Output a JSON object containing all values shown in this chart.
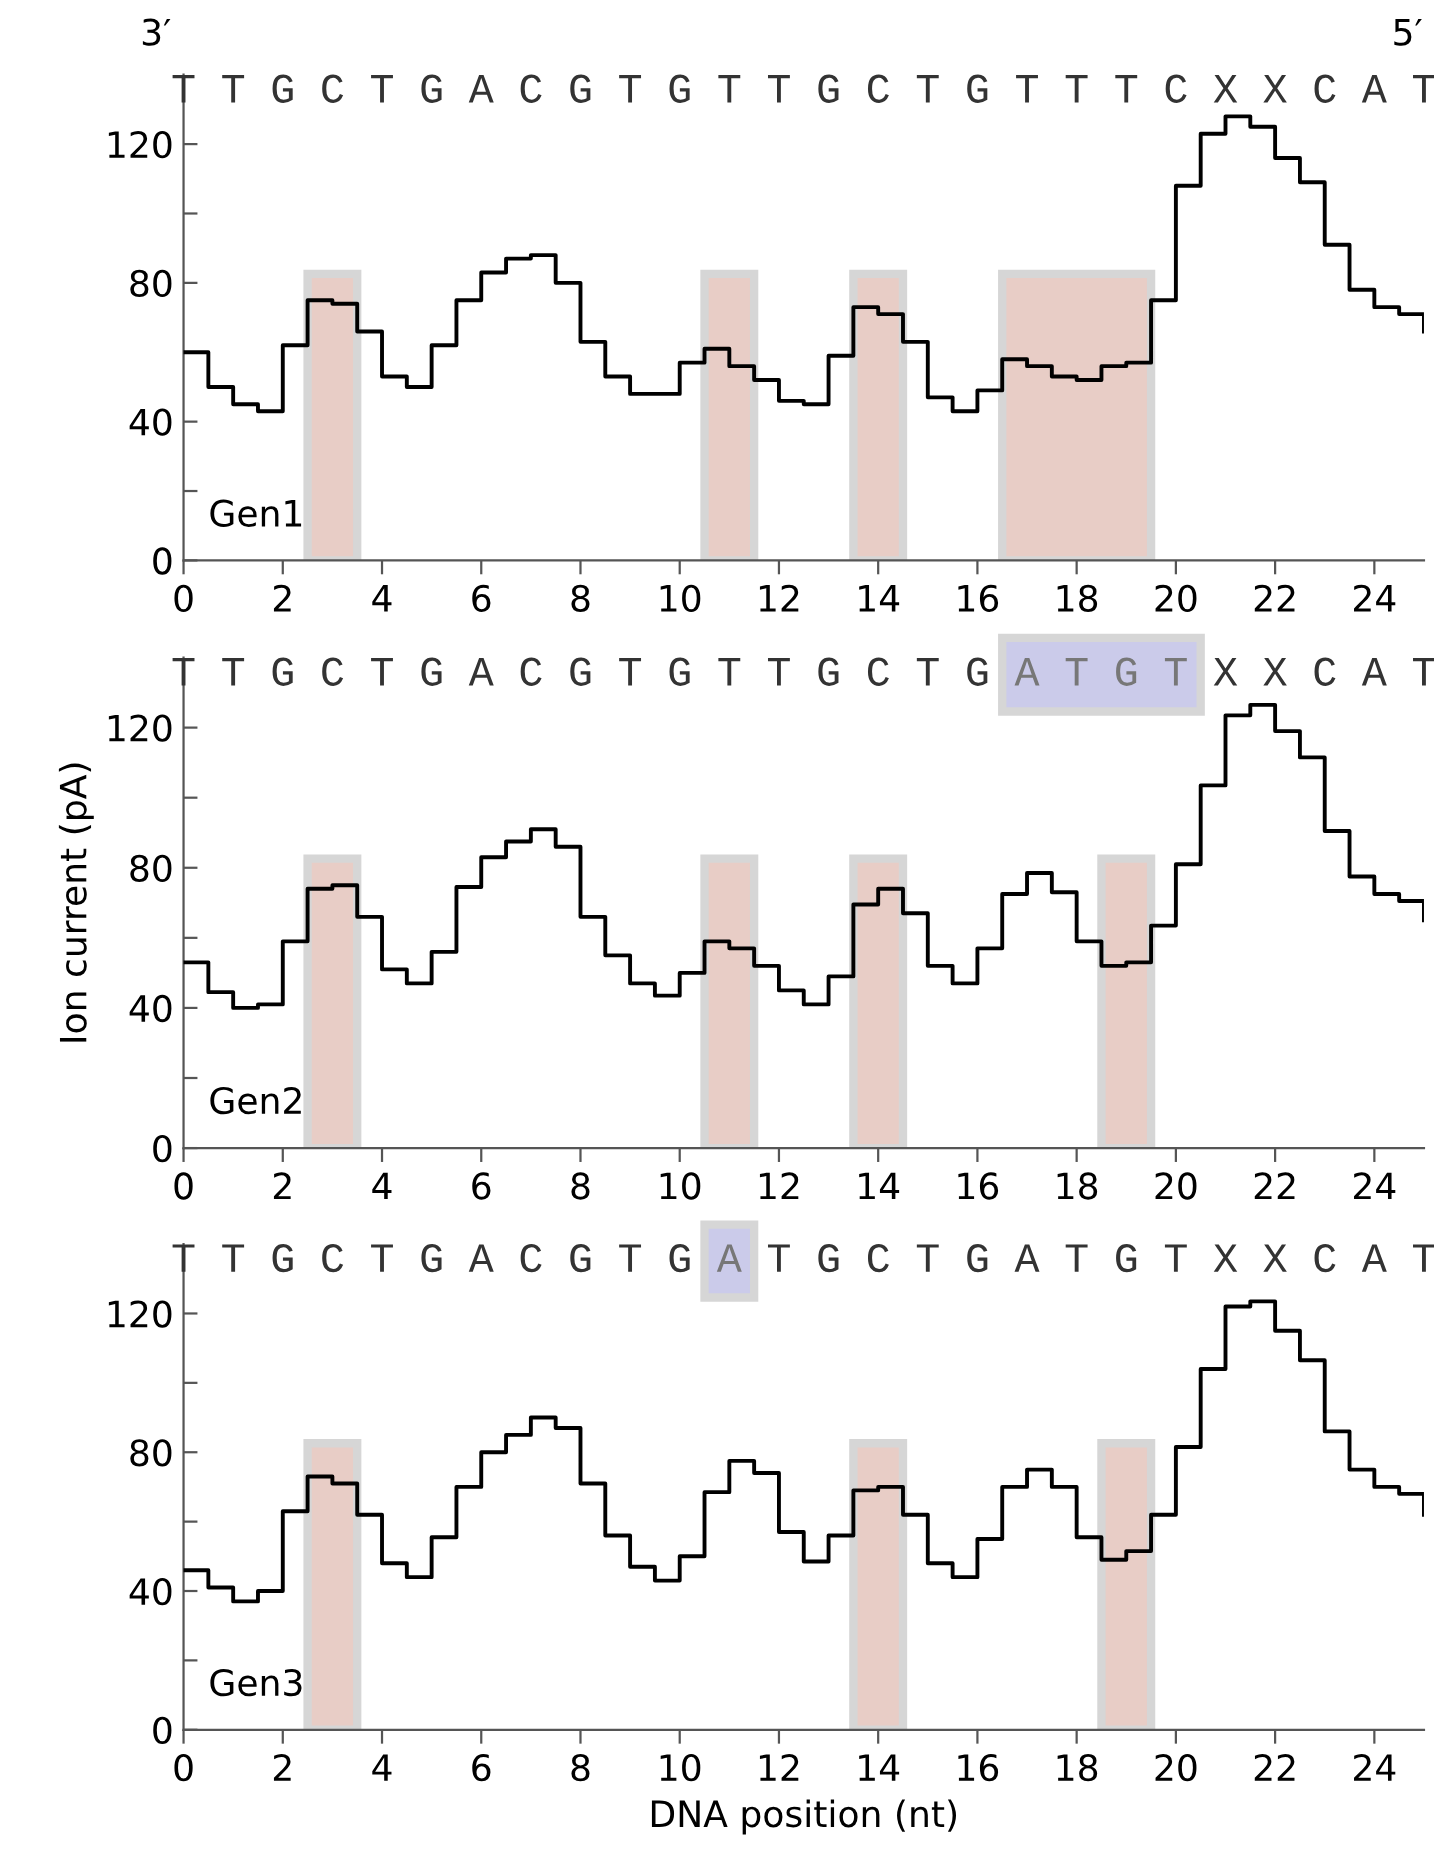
{
  "chart_data": [
    {
      "type": "step",
      "annotations": [
        "Gen1",
        "TTGCTGACGTGTTGCTGTTTCXXCAT",
        "3′",
        "5′"
      ],
      "x": [
        0,
        0.5,
        1,
        1.5,
        2,
        2.5,
        3,
        3.5,
        4,
        4.5,
        5,
        5.5,
        6,
        6.5,
        7,
        7.5,
        8,
        8.5,
        9,
        9.5,
        10,
        10.5,
        11,
        11.5,
        12,
        12.5,
        13,
        13.5,
        14,
        14.5,
        15,
        15.5,
        16,
        16.5,
        17,
        17.5,
        18,
        18.5,
        19,
        19.5,
        20,
        20.5,
        21,
        21.5,
        22,
        22.5,
        23,
        23.5,
        24,
        24.5,
        25
      ],
      "values": [
        60,
        50,
        45,
        43,
        62,
        75,
        74,
        66,
        53,
        50,
        62,
        75,
        83,
        87,
        88,
        80,
        63,
        53,
        48,
        48,
        57,
        61,
        56,
        52,
        46,
        45,
        59,
        73,
        71,
        63,
        47,
        43,
        49,
        58,
        56,
        53,
        52,
        56,
        57,
        75,
        108,
        123,
        128,
        125,
        116,
        109,
        91,
        78,
        73,
        71,
        66
      ],
      "color": "#000000",
      "xlim": [
        0,
        25
      ],
      "xticks": [
        0,
        2,
        4,
        6,
        8,
        10,
        12,
        14,
        16,
        18,
        20,
        22,
        24
      ],
      "ylim": [
        0,
        140
      ],
      "yticks": [
        0,
        {
          "value": 20,
          "label": null
        },
        40,
        {
          "value": 60,
          "label": null
        },
        80,
        {
          "value": 100,
          "label": null
        },
        120
      ],
      "bands": [
        {
          "axis": "x",
          "from": 2.5,
          "to": 3.5,
          "color": "#e8cdc6"
        },
        {
          "axis": "x",
          "from": 10.5,
          "to": 11.5,
          "color": "#e8cdc6"
        },
        {
          "axis": "x",
          "from": 13.5,
          "to": 14.5,
          "color": "#e8cdc6"
        },
        {
          "axis": "x",
          "from": 16.5,
          "to": 19.5,
          "color": "#e8cdc6"
        }
      ],
      "grid": false,
      "legend": false
    },
    {
      "type": "step",
      "annotations": [
        "Gen2",
        "TTGCTGACGTGTTGCTG",
        "XXCAT"
      ],
      "ylabel": "Ion current (pA)",
      "x": [
        0,
        0.5,
        1,
        1.5,
        2,
        2.5,
        3,
        3.5,
        4,
        4.5,
        5,
        5.5,
        6,
        6.5,
        7,
        7.5,
        8,
        8.5,
        9,
        9.5,
        10,
        10.5,
        11,
        11.5,
        12,
        12.5,
        13,
        13.5,
        14,
        14.5,
        15,
        15.5,
        16,
        16.5,
        17,
        17.5,
        18,
        18.5,
        19,
        19.5,
        20,
        20.5,
        21,
        21.5,
        22,
        22.5,
        23,
        23.5,
        24,
        24.5,
        25
      ],
      "values": [
        53,
        44.5,
        40,
        41,
        59,
        74,
        75,
        66,
        51,
        47,
        56,
        74.5,
        83,
        87.5,
        91,
        86,
        66,
        55,
        47,
        43.5,
        50,
        59,
        57,
        52,
        45,
        41,
        49,
        69.5,
        74,
        67,
        52,
        47,
        57,
        72.5,
        78.5,
        73,
        59,
        52,
        53,
        63.5,
        81,
        103.5,
        123.5,
        126.5,
        119,
        111.5,
        90.5,
        77.5,
        72.5,
        70.5,
        65
      ],
      "color": "#000000",
      "xlim": [
        0,
        25
      ],
      "xticks": [
        0,
        2,
        4,
        6,
        8,
        10,
        12,
        14,
        16,
        18,
        20,
        22,
        24
      ],
      "ylim": [
        0,
        140
      ],
      "yticks": [
        0,
        {
          "value": 20,
          "label": null
        },
        40,
        {
          "value": 60,
          "label": null
        },
        80,
        {
          "value": 100,
          "label": null
        },
        120
      ],
      "bands": [
        {
          "axis": "x",
          "from": 2.5,
          "to": 3.5,
          "color": "#e8cdc6"
        },
        {
          "axis": "x",
          "from": 10.5,
          "to": 11.5,
          "color": "#e8cdc6"
        },
        {
          "axis": "x",
          "from": 13.5,
          "to": 14.5,
          "color": "#e8cdc6"
        },
        {
          "axis": "x",
          "from": 18.5,
          "to": 19.5,
          "color": "#e8cdc6"
        },
        {
          "axis": "x",
          "from": 16.5,
          "to": 20.5,
          "color": "#cbcbea",
          "label": "ATGT"
        }
      ],
      "grid": false,
      "legend": false
    },
    {
      "type": "step",
      "annotations": [
        "Gen3",
        "TTGCTGACGTG",
        "TGCTGATGTXXCAT"
      ],
      "xlabel": "DNA position (nt)",
      "x": [
        0,
        0.5,
        1,
        1.5,
        2,
        2.5,
        3,
        3.5,
        4,
        4.5,
        5,
        5.5,
        6,
        6.5,
        7,
        7.5,
        8,
        8.5,
        9,
        9.5,
        10,
        10.5,
        11,
        11.5,
        12,
        12.5,
        13,
        13.5,
        14,
        14.5,
        15,
        15.5,
        16,
        16.5,
        17,
        17.5,
        18,
        18.5,
        19,
        19.5,
        20,
        20.5,
        21,
        21.5,
        22,
        22.5,
        23,
        23.5,
        24,
        24.5,
        25
      ],
      "values": [
        46,
        41,
        37,
        40,
        63,
        73,
        71,
        62,
        48,
        44,
        55.5,
        70,
        80,
        85,
        90,
        87,
        71,
        56,
        47,
        43,
        50,
        68.5,
        77.5,
        74,
        57,
        48.5,
        56,
        69,
        70,
        62,
        48,
        44,
        55,
        70,
        75,
        70,
        55.5,
        49,
        51.5,
        62,
        81.5,
        104,
        122,
        123.5,
        115,
        106.5,
        86,
        75,
        70,
        68,
        62
      ],
      "color": "#000000",
      "xlim": [
        0,
        25
      ],
      "xticks": [
        0,
        2,
        4,
        6,
        8,
        10,
        12,
        14,
        16,
        18,
        20,
        22,
        24
      ],
      "ylim": [
        0,
        140
      ],
      "yticks": [
        0,
        {
          "value": 20,
          "label": null
        },
        40,
        {
          "value": 60,
          "label": null
        },
        80,
        {
          "value": 100,
          "label": null
        },
        120
      ],
      "bands": [
        {
          "axis": "x",
          "from": 2.5,
          "to": 3.5,
          "color": "#e8cdc6"
        },
        {
          "axis": "x",
          "from": 13.5,
          "to": 14.5,
          "color": "#e8cdc6"
        },
        {
          "axis": "x",
          "from": 18.5,
          "to": 19.5,
          "color": "#e8cdc6"
        },
        {
          "axis": "x",
          "from": 10.5,
          "to": 11.5,
          "color": "#cbcbea",
          "label": "A"
        }
      ],
      "grid": false,
      "legend": false
    }
  ]
}
